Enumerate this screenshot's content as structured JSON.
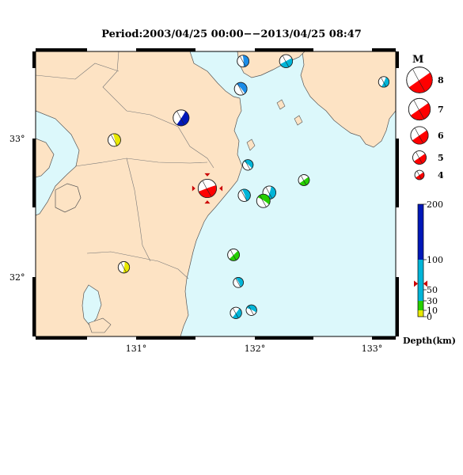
{
  "title": "Period:2003/04/25 00:00−−2013/04/25 08:47",
  "axes": {
    "x_ticks": [
      "131°",
      "132°",
      "133°"
    ],
    "y_ticks": [
      "33°",
      "32°"
    ]
  },
  "magnitude_legend": {
    "heading": "M",
    "levels": [
      "8",
      "7",
      "6",
      "5",
      "4"
    ]
  },
  "depth_scale": {
    "label": "Depth(km)",
    "ticks": [
      "200",
      "100",
      "50",
      "30",
      "10",
      "0"
    ],
    "marker_value": 60,
    "bands": [
      {
        "from": 0,
        "to": 10,
        "color": "#e8e800"
      },
      {
        "from": 10,
        "to": 30,
        "color": "#26d000"
      },
      {
        "from": 30,
        "to": 100,
        "color": "#00b5d8"
      },
      {
        "from": 100,
        "to": 200,
        "color": "#0018b8"
      }
    ]
  },
  "colors": {
    "land": "#fde3c4",
    "sea": "#dcf8fb",
    "main_event": "#ff0000"
  },
  "events": [
    {
      "id": "ev-main",
      "lon": 131.62,
      "lat": 32.63,
      "mag": 6.2,
      "color": "#ff0000",
      "highlight": true
    },
    {
      "id": "ev-a",
      "lon": 131.4,
      "lat": 33.14,
      "mag": 5.6,
      "color": "#0018b8"
    },
    {
      "id": "ev-b",
      "lon": 131.92,
      "lat": 33.55,
      "mag": 4.6,
      "color": "#1a8ce8"
    },
    {
      "id": "ev-c",
      "lon": 131.9,
      "lat": 33.35,
      "mag": 4.8,
      "color": "#1a8ce8"
    },
    {
      "id": "ev-d",
      "lon": 132.28,
      "lat": 33.55,
      "mag": 4.9,
      "color": "#00b5d8"
    },
    {
      "id": "ev-e",
      "lon": 133.1,
      "lat": 33.4,
      "mag": 4.3,
      "color": "#00b5d8"
    },
    {
      "id": "ev-f",
      "lon": 130.84,
      "lat": 32.98,
      "mag": 4.8,
      "color": "#e8e800"
    },
    {
      "id": "ev-g",
      "lon": 131.96,
      "lat": 32.8,
      "mag": 4.3,
      "color": "#00b5d8"
    },
    {
      "id": "ev-h",
      "lon": 132.43,
      "lat": 32.69,
      "mag": 4.4,
      "color": "#26d000"
    },
    {
      "id": "ev-i",
      "lon": 132.14,
      "lat": 32.6,
      "mag": 4.9,
      "color": "#00b5d8"
    },
    {
      "id": "ev-j",
      "lon": 131.93,
      "lat": 32.58,
      "mag": 4.7,
      "color": "#00b5d8"
    },
    {
      "id": "ev-k",
      "lon": 132.09,
      "lat": 32.54,
      "mag": 5.0,
      "color": "#26d000"
    },
    {
      "id": "ev-l",
      "lon": 131.84,
      "lat": 32.15,
      "mag": 4.6,
      "color": "#26d000"
    },
    {
      "id": "ev-m",
      "lon": 130.92,
      "lat": 32.06,
      "mag": 4.5,
      "color": "#e8e800"
    },
    {
      "id": "ev-n",
      "lon": 131.88,
      "lat": 31.95,
      "mag": 4.2,
      "color": "#00b5d8"
    },
    {
      "id": "ev-o",
      "lon": 131.99,
      "lat": 31.75,
      "mag": 4.3,
      "color": "#00b5d8"
    },
    {
      "id": "ev-p",
      "lon": 131.86,
      "lat": 31.73,
      "mag": 4.5,
      "color": "#00b5d8"
    }
  ]
}
